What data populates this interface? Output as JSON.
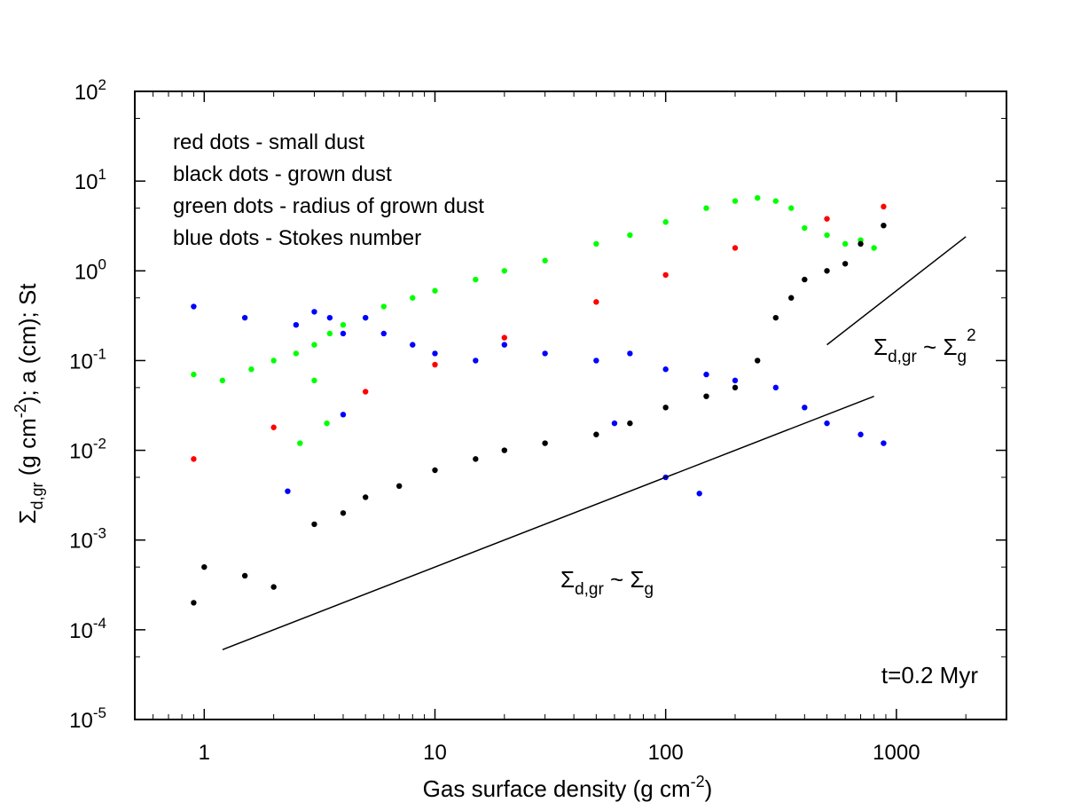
{
  "chart_data": {
    "type": "scatter",
    "x_scale": "log",
    "y_scale": "log",
    "xlim": [
      0.5,
      3000
    ],
    "ylim": [
      1e-05,
      100
    ],
    "x_ticks": [
      {
        "value": 1,
        "label": "1"
      },
      {
        "value": 10,
        "label": "10"
      },
      {
        "value": 100,
        "label": "100"
      },
      {
        "value": 1000,
        "label": "1000"
      }
    ],
    "y_ticks": [
      {
        "value": 1e-05,
        "base": "10",
        "exp": "-5"
      },
      {
        "value": 0.0001,
        "base": "10",
        "exp": "-4"
      },
      {
        "value": 0.001,
        "base": "10",
        "exp": "-3"
      },
      {
        "value": 0.01,
        "base": "10",
        "exp": "-2"
      },
      {
        "value": 0.1,
        "base": "10",
        "exp": "-1"
      },
      {
        "value": 1,
        "base": "10",
        "exp": "0"
      },
      {
        "value": 10,
        "base": "10",
        "exp": "1"
      },
      {
        "value": 100,
        "base": "10",
        "exp": "2"
      }
    ],
    "xlabel": {
      "main": "Gas surface density (g cm",
      "sup": "-2",
      "close": ")"
    },
    "ylabel": {
      "sigma": "Σ",
      "sub": "d,gr",
      "p1": " (g cm",
      "sup": "-2",
      "p2": ");  a (cm);  St"
    },
    "legend": [
      {
        "text": "red dots - small dust",
        "color": "#ff0000"
      },
      {
        "text": "black dots - grown dust",
        "color": "#000000"
      },
      {
        "text": "green dots - radius of grown dust",
        "color": "#00ff00"
      },
      {
        "text": "blue dots - Stokes number",
        "color": "#0000ff"
      }
    ],
    "series": [
      {
        "color": "#00ff00",
        "points": [
          [
            0.9,
            0.07
          ],
          [
            1.2,
            0.06
          ],
          [
            1.6,
            0.08
          ],
          [
            2.0,
            0.1
          ],
          [
            2.5,
            0.12
          ],
          [
            3,
            0.15
          ],
          [
            3,
            0.06
          ],
          [
            3.5,
            0.2
          ],
          [
            4,
            0.25
          ],
          [
            5,
            0.3
          ],
          [
            6,
            0.4
          ],
          [
            8,
            0.5
          ],
          [
            10,
            0.6
          ],
          [
            15,
            0.8
          ],
          [
            20,
            1.0
          ],
          [
            30,
            1.3
          ],
          [
            50,
            2.0
          ],
          [
            70,
            2.5
          ],
          [
            100,
            3.5
          ],
          [
            150,
            5
          ],
          [
            200,
            6
          ],
          [
            250,
            6.5
          ],
          [
            300,
            6
          ],
          [
            350,
            5
          ],
          [
            400,
            3
          ],
          [
            500,
            2.5
          ],
          [
            600,
            2
          ],
          [
            800,
            1.8
          ],
          [
            700,
            2.2
          ],
          [
            2.6,
            0.012
          ],
          [
            3.4,
            0.02
          ]
        ]
      },
      {
        "color": "#ff0000",
        "points": [
          [
            0.9,
            0.008
          ],
          [
            2,
            0.018
          ],
          [
            5,
            0.045
          ],
          [
            10,
            0.09
          ],
          [
            20,
            0.18
          ],
          [
            50,
            0.45
          ],
          [
            100,
            0.9
          ],
          [
            200,
            1.8
          ],
          [
            500,
            3.8
          ],
          [
            880,
            5.2
          ]
        ]
      },
      {
        "color": "#0000ff",
        "points": [
          [
            0.9,
            0.4
          ],
          [
            1.5,
            0.3
          ],
          [
            2.5,
            0.25
          ],
          [
            3,
            0.35
          ],
          [
            3.5,
            0.3
          ],
          [
            4,
            0.2
          ],
          [
            5,
            0.3
          ],
          [
            6,
            0.2
          ],
          [
            8,
            0.15
          ],
          [
            10,
            0.12
          ],
          [
            15,
            0.1
          ],
          [
            20,
            0.15
          ],
          [
            30,
            0.12
          ],
          [
            50,
            0.1
          ],
          [
            70,
            0.12
          ],
          [
            100,
            0.08
          ],
          [
            150,
            0.07
          ],
          [
            200,
            0.06
          ],
          [
            300,
            0.05
          ],
          [
            400,
            0.03
          ],
          [
            500,
            0.02
          ],
          [
            700,
            0.015
          ],
          [
            880,
            0.012
          ],
          [
            2.3,
            0.0035
          ],
          [
            4,
            0.025
          ],
          [
            60,
            0.02
          ],
          [
            100,
            0.005
          ],
          [
            140,
            0.0033
          ]
        ]
      },
      {
        "color": "#000000",
        "points": [
          [
            0.9,
            0.0002
          ],
          [
            1.0,
            0.0005
          ],
          [
            1.5,
            0.0004
          ],
          [
            2,
            0.0003
          ],
          [
            3,
            0.0015
          ],
          [
            4,
            0.002
          ],
          [
            5,
            0.003
          ],
          [
            7,
            0.004
          ],
          [
            10,
            0.006
          ],
          [
            15,
            0.008
          ],
          [
            20,
            0.01
          ],
          [
            30,
            0.012
          ],
          [
            50,
            0.015
          ],
          [
            70,
            0.02
          ],
          [
            100,
            0.03
          ],
          [
            150,
            0.04
          ],
          [
            200,
            0.05
          ],
          [
            250,
            0.1
          ],
          [
            300,
            0.3
          ],
          [
            350,
            0.5
          ],
          [
            400,
            0.8
          ],
          [
            500,
            1.0
          ],
          [
            600,
            1.2
          ],
          [
            700,
            2.0
          ],
          [
            880,
            3.2
          ]
        ]
      }
    ],
    "reference_lines": [
      {
        "from": [
          1.2,
          6e-05
        ],
        "to": [
          800,
          0.04
        ]
      },
      {
        "from": [
          500,
          0.15
        ],
        "to": [
          2000,
          2.4
        ]
      }
    ],
    "annotations": {
      "lin_label": {
        "sigma": "Σ",
        "sub1": "d,gr",
        "tilde": " ~ ",
        "sigma2": "Σ",
        "sub2": "g"
      },
      "quad_label": {
        "sigma": "Σ",
        "sub1": "d,gr",
        "tilde": " ~ ",
        "sigma2": "Σ",
        "sub2": "g",
        "sup": "2"
      },
      "time_label": "t=0.2 Myr"
    },
    "grid": false,
    "legend_position": "top-left"
  }
}
